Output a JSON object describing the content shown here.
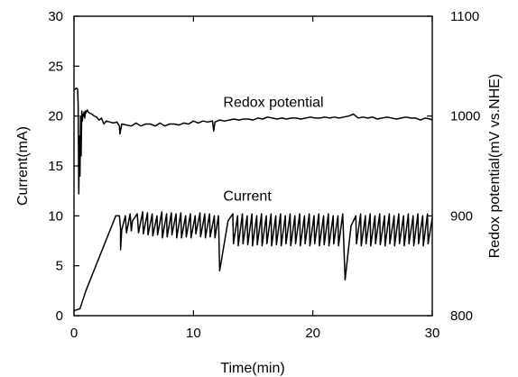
{
  "chart_data": {
    "type": "line",
    "title": "",
    "xlabel": "Time(min)",
    "ylabel": "Current(mA)",
    "y2label": "Redox potential(mV vs.NHE)",
    "xlim": [
      0,
      30
    ],
    "ylim": [
      0,
      30
    ],
    "y2lim": [
      800,
      1100
    ],
    "x_ticks": [
      0,
      10,
      20,
      30
    ],
    "y_ticks": [
      0,
      5,
      10,
      15,
      20,
      25,
      30
    ],
    "y2_ticks": [
      800,
      900,
      1000,
      1100
    ],
    "grid": false,
    "annotations": [
      {
        "text": "Redox potential",
        "x": 12.5,
        "y": 20.9
      },
      {
        "text": "Current",
        "x": 12.5,
        "y": 11.5
      }
    ],
    "series": [
      {
        "name": "Current",
        "axis": "left",
        "x": [
          0,
          0.5,
          1.0,
          3.5,
          3.8,
          3.9,
          3.9,
          4.0,
          4.3,
          4.4,
          4.7,
          4.8,
          4.9,
          5.3,
          5.4,
          5.75,
          5.8,
          6.15,
          6.2,
          6.55,
          6.6,
          6.95,
          7.0,
          7.35,
          7.4,
          7.75,
          7.8,
          8.15,
          8.2,
          8.55,
          8.6,
          8.95,
          9.0,
          9.35,
          9.4,
          9.75,
          9.8,
          10.15,
          10.2,
          10.55,
          10.6,
          10.95,
          11.0,
          11.35,
          11.4,
          11.75,
          11.8,
          12.1,
          12.2,
          12.9,
          13.3,
          13.35,
          13.7,
          13.75,
          14.1,
          14.15,
          14.5,
          14.55,
          14.9,
          14.95,
          15.3,
          15.35,
          15.7,
          15.75,
          16.1,
          16.15,
          16.5,
          16.55,
          16.9,
          16.95,
          17.3,
          17.35,
          17.7,
          17.75,
          18.1,
          18.15,
          18.5,
          18.55,
          18.9,
          18.95,
          19.3,
          19.35,
          19.7,
          19.75,
          20.1,
          20.15,
          20.5,
          20.55,
          20.9,
          20.95,
          21.3,
          21.35,
          21.7,
          21.75,
          22.1,
          22.15,
          22.5,
          22.7,
          23.2,
          23.6,
          23.65,
          24.0,
          24.05,
          24.4,
          24.45,
          24.8,
          24.85,
          25.2,
          25.25,
          25.6,
          25.65,
          26.0,
          26.05,
          26.4,
          26.45,
          26.8,
          26.85,
          27.2,
          27.25,
          27.6,
          27.65,
          28.0,
          28.05,
          28.4,
          28.45,
          28.8,
          28.85,
          29.2,
          29.25,
          29.6,
          29.65,
          30.0
        ],
        "y": [
          0.5,
          0.7,
          2.5,
          10.0,
          10.0,
          8.7,
          6.6,
          8.6,
          10.0,
          8.3,
          10.2,
          8.5,
          9.5,
          10.2,
          8.3,
          10.4,
          8.2,
          10.3,
          8.1,
          10.2,
          8.0,
          10.0,
          8.1,
          10.4,
          7.8,
          10.2,
          7.9,
          10.3,
          8.1,
          10.2,
          7.8,
          10.3,
          7.8,
          10.0,
          7.9,
          10.2,
          7.8,
          10.0,
          8.2,
          10.3,
          7.9,
          10.2,
          7.8,
          10.2,
          7.9,
          10.0,
          7.8,
          10.0,
          4.5,
          9.5,
          10.2,
          7.2,
          10.0,
          7.0,
          10.2,
          7.2,
          10.0,
          7.1,
          10.2,
          7.0,
          10.0,
          7.1,
          10.2,
          7.0,
          10.0,
          7.2,
          10.2,
          7.0,
          10.0,
          7.1,
          10.2,
          7.0,
          10.0,
          7.2,
          10.2,
          7.0,
          10.0,
          7.2,
          10.2,
          7.0,
          10.0,
          7.2,
          10.2,
          7.0,
          10.0,
          7.2,
          10.2,
          7.0,
          10.0,
          7.1,
          10.2,
          7.0,
          10.0,
          7.2,
          10.0,
          7.0,
          10.2,
          3.6,
          9.0,
          10.0,
          7.2,
          10.2,
          7.0,
          10.0,
          7.2,
          10.2,
          7.0,
          10.0,
          7.2,
          10.2,
          7.1,
          10.0,
          7.0,
          10.2,
          7.2,
          10.0,
          7.0,
          10.2,
          7.2,
          10.0,
          7.0,
          10.2,
          7.2,
          10.0,
          7.0,
          10.2,
          7.2,
          10.0,
          7.0,
          10.2,
          7.2,
          9.8
        ]
      },
      {
        "name": "Redox potential",
        "axis": "right",
        "x": [
          0,
          0.1,
          0.2,
          0.3,
          0.35,
          0.4,
          0.45,
          0.5,
          0.55,
          0.6,
          0.65,
          0.7,
          0.75,
          0.8,
          0.85,
          0.9,
          0.95,
          1.0,
          1.1,
          1.2,
          1.3,
          1.5,
          1.7,
          1.9,
          2.1,
          2.3,
          2.5,
          2.7,
          3.0,
          3.3,
          3.6,
          3.8,
          3.85,
          4.0,
          4.4,
          4.8,
          5.2,
          5.6,
          6.0,
          6.4,
          6.8,
          7.2,
          7.6,
          8.0,
          8.4,
          8.8,
          9.2,
          9.6,
          10.0,
          10.4,
          10.8,
          11.2,
          11.6,
          11.7,
          11.8,
          12.2,
          12.6,
          13.0,
          13.4,
          13.8,
          14.2,
          14.6,
          15.0,
          15.4,
          15.8,
          16.2,
          16.6,
          17.0,
          17.4,
          17.8,
          18.2,
          18.6,
          19.0,
          19.4,
          19.8,
          20.2,
          20.6,
          21.0,
          21.4,
          21.8,
          22.2,
          22.6,
          23.0,
          23.2,
          23.4,
          23.6,
          23.8,
          24.2,
          24.6,
          25.0,
          25.4,
          25.8,
          26.2,
          26.6,
          27.0,
          27.4,
          27.8,
          28.2,
          28.6,
          29.0,
          29.4,
          29.8,
          30.0
        ],
        "y": [
          1026,
          1027,
          1028,
          1027,
          1012,
          922,
          980,
          940,
          1000,
          960,
          1005,
          995,
          1002,
          1000,
          1004,
          998,
          1005,
          1003,
          1006,
          1004,
          1003,
          1002,
          1000,
          999,
          996,
          998,
          992,
          995,
          994,
          993,
          994,
          990,
          982,
          992,
          991,
          990,
          993,
          990,
          992,
          992,
          990,
          993,
          990,
          992,
          992,
          991,
          993,
          992,
          995,
          993,
          995,
          994,
          995,
          985,
          994,
          996,
          995,
          996,
          997,
          996,
          997,
          997,
          996,
          998,
          997,
          999,
          998,
          997,
          998,
          997,
          998,
          998,
          997,
          998,
          999,
          998,
          998,
          999,
          998,
          999,
          998,
          999,
          1000,
          1001,
          1002,
          1000,
          998,
          999,
          998,
          999,
          997,
          998,
          999,
          998,
          997,
          998,
          999,
          998,
          998,
          996,
          998,
          997,
          996
        ]
      }
    ]
  }
}
